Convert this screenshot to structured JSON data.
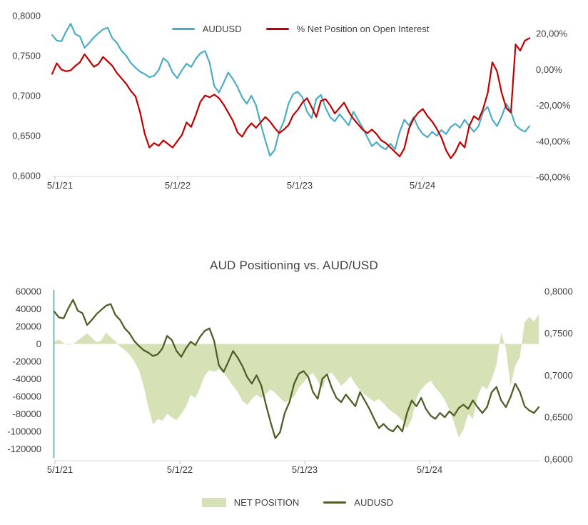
{
  "chart_data": [
    {
      "type": "line",
      "title": "",
      "legend_position": "top-center",
      "grid": "off",
      "x_axis": {
        "tick_labels": [
          "5/1/21",
          "5/1/22",
          "5/1/23",
          "5/1/24"
        ],
        "range_note": "weekly data from 5/1/21 to early 2025"
      },
      "y_axis_left": {
        "tick_labels": [
          "0,8000",
          "0,7500",
          "0,7000",
          "0,6500",
          "0,6000"
        ],
        "min": 0.6,
        "max": 0.8,
        "applies_to": "AUDUSD"
      },
      "y_axis_right": {
        "tick_labels": [
          "20,00%",
          "0,00%",
          "-20,00%",
          "-40,00%",
          "-60,00%"
        ],
        "min": -60,
        "max": 20,
        "applies_to": "% Net Position on Open Interest"
      },
      "series": [
        {
          "name": "AUDUSD",
          "color": "#4BACC6",
          "axis": "left",
          "values": [
            0.776,
            0.769,
            0.768,
            0.78,
            0.79,
            0.777,
            0.774,
            0.76,
            0.766,
            0.773,
            0.778,
            0.783,
            0.785,
            0.772,
            0.766,
            0.756,
            0.75,
            0.741,
            0.735,
            0.73,
            0.727,
            0.723,
            0.725,
            0.732,
            0.747,
            0.742,
            0.729,
            0.722,
            0.732,
            0.74,
            0.736,
            0.746,
            0.753,
            0.756,
            0.741,
            0.712,
            0.704,
            0.716,
            0.729,
            0.721,
            0.711,
            0.698,
            0.69,
            0.7,
            0.688,
            0.665,
            0.644,
            0.625,
            0.632,
            0.655,
            0.668,
            0.69,
            0.702,
            0.705,
            0.698,
            0.68,
            0.672,
            0.696,
            0.701,
            0.685,
            0.673,
            0.668,
            0.677,
            0.67,
            0.663,
            0.68,
            0.67,
            0.66,
            0.648,
            0.637,
            0.642,
            0.636,
            0.633,
            0.64,
            0.633,
            0.655,
            0.67,
            0.663,
            0.673,
            0.66,
            0.652,
            0.648,
            0.655,
            0.65,
            0.657,
            0.652,
            0.661,
            0.665,
            0.66,
            0.67,
            0.662,
            0.655,
            0.662,
            0.68,
            0.686,
            0.67,
            0.662,
            0.674,
            0.69,
            0.68,
            0.663,
            0.658,
            0.655,
            0.662
          ]
        },
        {
          "name": "% Net Position on Open Interest",
          "color": "#C00000",
          "axis": "right",
          "unit": "%",
          "values": [
            -2.5,
            3.5,
            0,
            -1,
            -0.5,
            2,
            4,
            8.5,
            5,
            1.5,
            3,
            7,
            4.5,
            2,
            -2,
            -5,
            -8,
            -12,
            -15,
            -24,
            -36,
            -43.5,
            -41,
            -42.5,
            -39.5,
            -41.5,
            -43.5,
            -40,
            -36.5,
            -29.5,
            -32,
            -25.5,
            -18,
            -14.5,
            -15.5,
            -14,
            -16,
            -19.5,
            -24,
            -28.5,
            -35,
            -37.5,
            -33,
            -30,
            -32.5,
            -29.5,
            -26.5,
            -29,
            -32.5,
            -35.5,
            -33.5,
            -31,
            -25.5,
            -22.5,
            -18.5,
            -16,
            -21,
            -26.5,
            -17.5,
            -16.5,
            -20,
            -24.5,
            -21.5,
            -18.5,
            -23.5,
            -27.5,
            -30.5,
            -33.5,
            -35.5,
            -33.5,
            -36,
            -39.5,
            -41,
            -43.5,
            -46,
            -48.5,
            -44,
            -33,
            -27.5,
            -24,
            -22,
            -26,
            -29,
            -33,
            -38,
            -45,
            -49.5,
            -46,
            -40.5,
            -43.5,
            -31.5,
            -26,
            -28,
            -22,
            -13,
            4,
            -1,
            -13,
            -21.5,
            -24,
            14,
            10.5,
            16,
            17.5
          ]
        }
      ]
    },
    {
      "type": "area",
      "title": "AUD Positioning vs. AUD/USD",
      "legend_position": "bottom-center",
      "grid": "off",
      "x_axis": {
        "tick_labels": [
          "5/1/21",
          "5/1/22",
          "5/1/23",
          "5/1/24"
        ],
        "range_note": "weekly data from 5/1/21 to early 2025"
      },
      "y_axis_left": {
        "tick_labels": [
          "60000",
          "40000",
          "20000",
          "0",
          "-20000",
          "-40000",
          "-60000",
          "-80000",
          "-100000",
          "-120000"
        ],
        "min": -120000,
        "max": 60000,
        "applies_to": "NET POSITION (contracts)"
      },
      "y_axis_right": {
        "tick_labels": [
          "0,8000",
          "0,7500",
          "0,7000",
          "0,6500",
          "0,6000"
        ],
        "min": 0.6,
        "max": 0.8,
        "applies_to": "AUDUSD"
      },
      "series": [
        {
          "name": "NET POSITION",
          "style": "area",
          "color": "#D6E2B6",
          "axis": "left",
          "values": [
            3000,
            5000,
            1000,
            -1000,
            0,
            4000,
            8000,
            12000,
            7000,
            2000,
            4000,
            13000,
            8000,
            3000,
            -3000,
            -7000,
            -12000,
            -20000,
            -30000,
            -48000,
            -72000,
            -92000,
            -86000,
            -88000,
            -80000,
            -84000,
            -87000,
            -80000,
            -72000,
            -58000,
            -62000,
            -50000,
            -36000,
            -30000,
            -32000,
            -29000,
            -33000,
            -40000,
            -48000,
            -55000,
            -65000,
            -70000,
            -63000,
            -58000,
            -62000,
            -57000,
            -52000,
            -56000,
            -62000,
            -67000,
            -64000,
            -60000,
            -50000,
            -44000,
            -37000,
            -33000,
            -42000,
            -52000,
            -35000,
            -33000,
            -40000,
            -48000,
            -43000,
            -37000,
            -46000,
            -53000,
            -58000,
            -62000,
            -66000,
            -63000,
            -68000,
            -74000,
            -78000,
            -82000,
            -88000,
            -96000,
            -86000,
            -62000,
            -52000,
            -46000,
            -42000,
            -50000,
            -56000,
            -64000,
            -75000,
            -90000,
            -107000,
            -98000,
            -80000,
            -86000,
            -60000,
            -48000,
            -52000,
            -40000,
            -24000,
            13000,
            -5000,
            -48000,
            -25000,
            -15000,
            25000,
            31000,
            26000,
            34000
          ]
        },
        {
          "name": "AUDUSD",
          "style": "line",
          "color": "#4F5F28",
          "axis": "right",
          "values": [
            0.776,
            0.769,
            0.768,
            0.78,
            0.79,
            0.777,
            0.774,
            0.76,
            0.766,
            0.773,
            0.778,
            0.783,
            0.785,
            0.772,
            0.766,
            0.756,
            0.75,
            0.741,
            0.735,
            0.73,
            0.727,
            0.723,
            0.725,
            0.732,
            0.747,
            0.742,
            0.729,
            0.722,
            0.732,
            0.74,
            0.736,
            0.746,
            0.753,
            0.756,
            0.741,
            0.712,
            0.704,
            0.716,
            0.729,
            0.721,
            0.711,
            0.698,
            0.69,
            0.7,
            0.688,
            0.665,
            0.644,
            0.625,
            0.632,
            0.655,
            0.668,
            0.69,
            0.702,
            0.705,
            0.698,
            0.68,
            0.672,
            0.696,
            0.701,
            0.685,
            0.673,
            0.668,
            0.677,
            0.67,
            0.663,
            0.68,
            0.67,
            0.66,
            0.648,
            0.637,
            0.642,
            0.636,
            0.633,
            0.64,
            0.633,
            0.655,
            0.67,
            0.663,
            0.673,
            0.66,
            0.652,
            0.648,
            0.655,
            0.65,
            0.657,
            0.652,
            0.661,
            0.665,
            0.66,
            0.67,
            0.662,
            0.655,
            0.662,
            0.68,
            0.686,
            0.67,
            0.662,
            0.674,
            0.69,
            0.68,
            0.663,
            0.658,
            0.655,
            0.662
          ]
        }
      ],
      "axis_line_color": "#4BACC6",
      "baseline_color": "#D9D9D9"
    }
  ],
  "text_color": "#404040"
}
